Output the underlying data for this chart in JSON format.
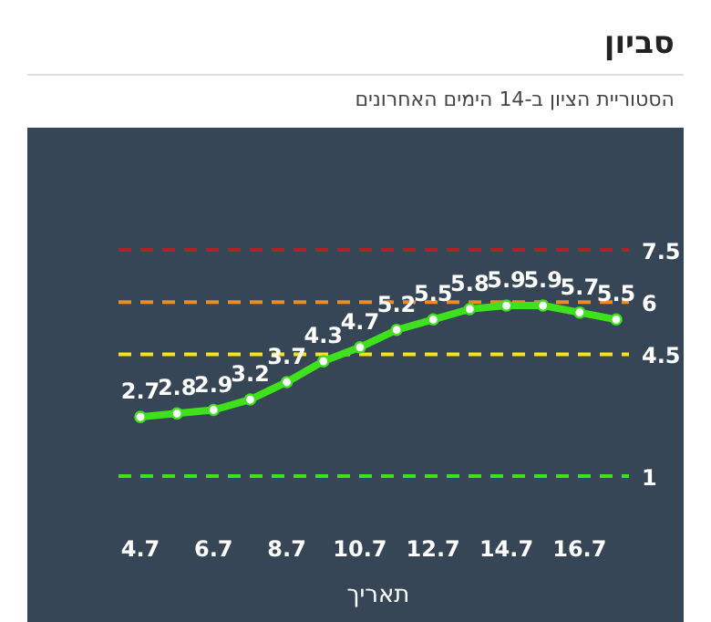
{
  "chart_data": {
    "type": "line",
    "title": "סביון",
    "subtitle": "הסטוריית הציון ב-14 הימים האחרונים",
    "xlabel": "תאריך",
    "categories": [
      "4.7",
      null,
      "6.7",
      null,
      "8.7",
      null,
      "10.7",
      null,
      "12.7",
      null,
      "14.7",
      null,
      "16.7",
      null
    ],
    "series": [
      {
        "color": "#3fe01c",
        "values": [
          2.7,
          2.8,
          2.9,
          3.2,
          3.7,
          4.3,
          4.7,
          5.2,
          5.5,
          5.8,
          5.9,
          5.9,
          5.7,
          5.5
        ]
      }
    ],
    "data_labels": true,
    "marker": "circle",
    "line_style": "solid",
    "tick_labels": "x",
    "ref_lines": [
      {
        "axis": "y",
        "value": 7.5,
        "label": "7.5",
        "color": "#b22222",
        "line_style": "dashed"
      },
      {
        "axis": "y",
        "value": 6,
        "label": "6",
        "color": "#f08a24",
        "line_style": "dashed"
      },
      {
        "axis": "y",
        "value": 4.5,
        "label": "4.5",
        "color": "#f2e41a",
        "line_style": "dashed"
      },
      {
        "axis": "y",
        "value": 1,
        "label": "1",
        "color": "#3fe01c",
        "line_style": "dashed"
      }
    ]
  }
}
